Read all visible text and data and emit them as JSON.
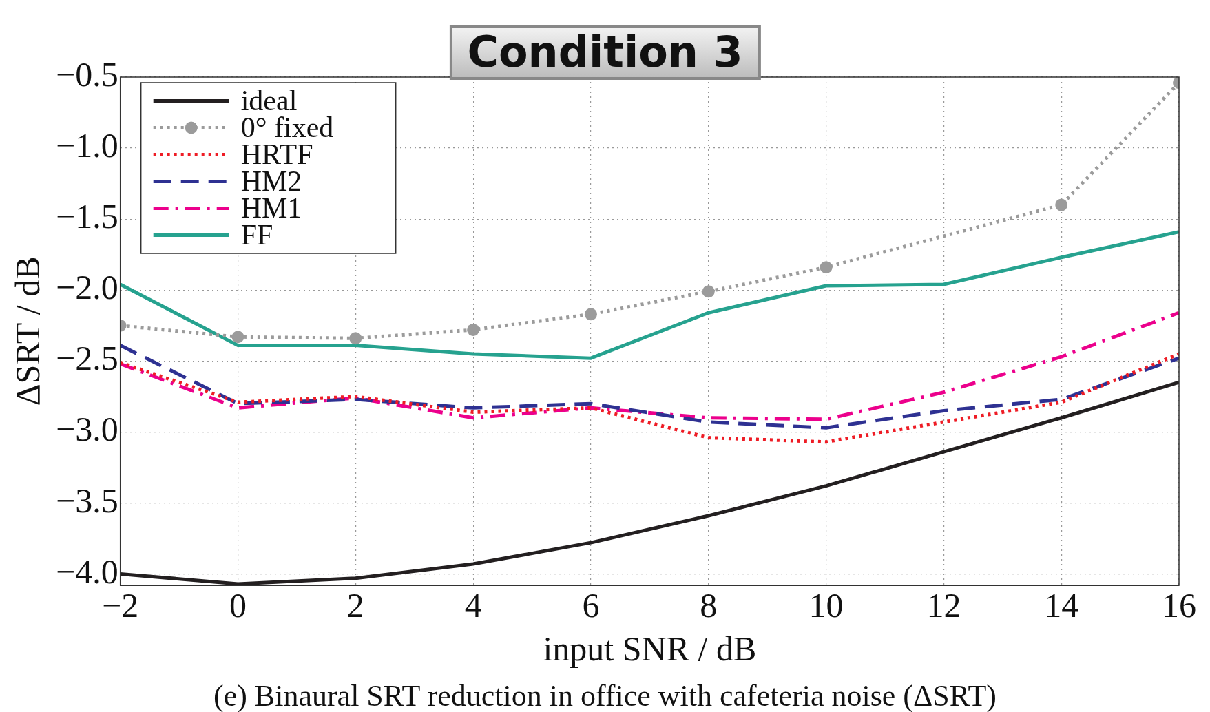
{
  "chart_data": {
    "type": "line",
    "title": "Condition 3",
    "xlabel": "input SNR / dB",
    "ylabel": "ΔSRT / dB",
    "annotations": [
      "(e) Binaural SRT reduction in office with cafeteria noise (ΔSRT)"
    ],
    "x": [
      -2,
      0,
      2,
      4,
      6,
      8,
      10,
      12,
      14,
      16
    ],
    "xlim": [
      -2,
      16
    ],
    "xticks": [
      {
        "value": -2,
        "label": "−2"
      },
      0,
      2,
      4,
      6,
      8,
      10,
      12,
      14,
      16
    ],
    "ylim": [
      -4.08,
      -0.5
    ],
    "yticks": [
      {
        "value": -4.0,
        "label": "−4.0"
      },
      {
        "value": -3.5,
        "label": "−3.5"
      },
      {
        "value": -3.0,
        "label": "−3.0"
      },
      {
        "value": -2.5,
        "label": "−2.5"
      },
      {
        "value": -2.0,
        "label": "−2.0"
      },
      {
        "value": -1.5,
        "label": "−1.5"
      },
      {
        "value": -1.0,
        "label": "−1.0"
      },
      {
        "value": -0.5,
        "label": "−0.5"
      }
    ],
    "grid": true,
    "legend": "top left",
    "series": [
      {
        "name": "ideal",
        "color": "#231f20",
        "line_style": "solid",
        "marker": "none",
        "values": [
          -4.0,
          -4.07,
          -4.03,
          -3.93,
          -3.78,
          -3.59,
          -3.38,
          -3.14,
          -2.9,
          -2.65
        ]
      },
      {
        "name": "0° fixed",
        "color": "#9b9b9b",
        "line_style": "dotted",
        "marker": "circle",
        "values": [
          -2.25,
          -2.33,
          -2.34,
          -2.28,
          -2.17,
          -2.01,
          -1.84,
          null,
          -1.4,
          -0.54
        ]
      },
      {
        "name": "HRTF",
        "color": "#ee1c25",
        "line_style": "dotted",
        "marker": "none",
        "values": [
          -2.51,
          -2.79,
          -2.75,
          -2.86,
          -2.83,
          -3.04,
          -3.07,
          -2.93,
          -2.79,
          -2.45
        ]
      },
      {
        "name": "HM2",
        "color": "#2e3192",
        "line_style": "dashed",
        "marker": "none",
        "values": [
          -2.39,
          -2.8,
          -2.77,
          -2.83,
          -2.8,
          -2.93,
          -2.97,
          -2.85,
          -2.77,
          -2.48
        ]
      },
      {
        "name": "HM1",
        "color": "#ec008c",
        "line_style": "dashdot",
        "marker": "none",
        "values": [
          -2.52,
          -2.83,
          -2.76,
          -2.9,
          -2.83,
          -2.9,
          -2.91,
          -2.72,
          -2.47,
          -2.16
        ]
      },
      {
        "name": "FF",
        "color": "#26a28f",
        "line_style": "solid",
        "marker": "none",
        "values": [
          -1.96,
          -2.39,
          -2.39,
          -2.45,
          -2.48,
          -2.16,
          -1.97,
          -1.96,
          -1.77,
          -1.59
        ]
      }
    ]
  }
}
